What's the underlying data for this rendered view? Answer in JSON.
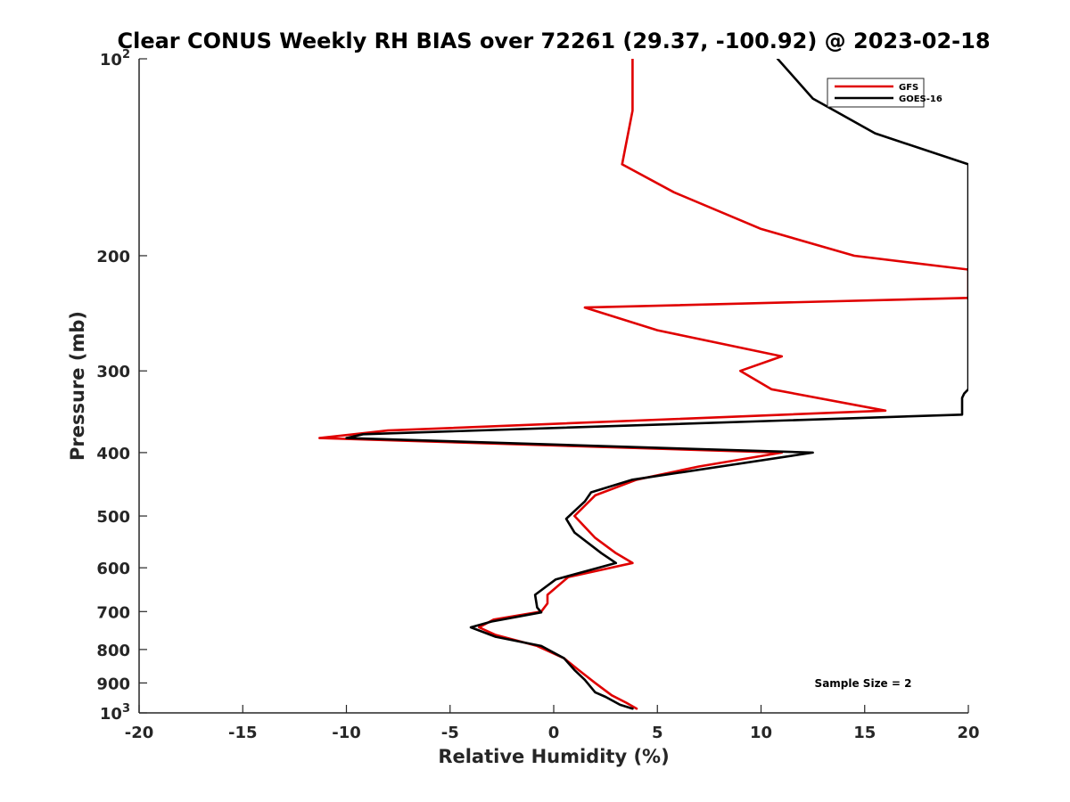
{
  "chart_data": {
    "type": "line",
    "title": "Clear CONUS Weekly RH BIAS over 72261 (29.37, -100.92) @ 2023-02-18",
    "xlabel": "Relative Humidity (%)",
    "ylabel": "Pressure (mb)",
    "xlim": [
      -20,
      20
    ],
    "ylim": [
      100,
      1000
    ],
    "y_scale": "log",
    "y_reversed": true,
    "x_ticks": [
      "-20",
      "-15",
      "-10",
      "-5",
      "0",
      "5",
      "10",
      "15",
      "20"
    ],
    "y_ticks": [
      {
        "value": 200,
        "label": "200"
      },
      {
        "value": 300,
        "label": "300"
      },
      {
        "value": 400,
        "label": "400"
      },
      {
        "value": 500,
        "label": "500"
      },
      {
        "value": 600,
        "label": "600"
      },
      {
        "value": 700,
        "label": "700"
      },
      {
        "value": 800,
        "label": "800"
      },
      {
        "value": 900,
        "label": "900"
      }
    ],
    "y_end_labels": {
      "top": {
        "base": "10",
        "exp": "2"
      },
      "bottom": {
        "base": "10",
        "exp": "3"
      }
    },
    "grid": false,
    "legend_position": "top-right",
    "annotation": "Sample Size = 2",
    "series": [
      {
        "name": "GFS",
        "color": "#e00000",
        "points": [
          [
            4.0,
            985
          ],
          [
            3.5,
            965
          ],
          [
            2.8,
            940
          ],
          [
            2.0,
            900
          ],
          [
            1.2,
            860
          ],
          [
            0.5,
            825
          ],
          [
            -0.8,
            790
          ],
          [
            -2.8,
            760
          ],
          [
            -3.6,
            740
          ],
          [
            -2.9,
            720
          ],
          [
            -0.6,
            700
          ],
          [
            -0.3,
            680
          ],
          [
            -0.3,
            660
          ],
          [
            0.7,
            620
          ],
          [
            3.8,
            590
          ],
          [
            3.0,
            570
          ],
          [
            2.0,
            540
          ],
          [
            1.0,
            500
          ],
          [
            2.0,
            465
          ],
          [
            4.0,
            440
          ],
          [
            7.0,
            420
          ],
          [
            11.0,
            400
          ],
          [
            -11.3,
            380
          ],
          [
            -8.0,
            370
          ],
          [
            16.0,
            345
          ],
          [
            10.5,
            320
          ],
          [
            9.0,
            300
          ],
          [
            11.0,
            285
          ],
          [
            5.0,
            260
          ],
          [
            1.5,
            240
          ],
          [
            20.0,
            232
          ],
          [
            20.0,
            210
          ],
          [
            14.5,
            200
          ],
          [
            10.0,
            182
          ],
          [
            5.8,
            160
          ],
          [
            3.3,
            145
          ],
          [
            3.8,
            120
          ],
          [
            3.8,
            100
          ]
        ]
      },
      {
        "name": "GOES-16",
        "color": "#000000",
        "points": [
          [
            3.8,
            985
          ],
          [
            3.2,
            972
          ],
          [
            2.5,
            945
          ],
          [
            2.0,
            930
          ],
          [
            1.5,
            890
          ],
          [
            1.0,
            860
          ],
          [
            0.5,
            825
          ],
          [
            -0.6,
            790
          ],
          [
            -2.8,
            765
          ],
          [
            -4.0,
            740
          ],
          [
            -3.0,
            725
          ],
          [
            -0.6,
            702
          ],
          [
            -0.8,
            690
          ],
          [
            -0.9,
            660
          ],
          [
            0.1,
            625
          ],
          [
            3.0,
            590
          ],
          [
            2.3,
            570
          ],
          [
            1.0,
            530
          ],
          [
            0.6,
            505
          ],
          [
            1.5,
            475
          ],
          [
            1.8,
            460
          ],
          [
            3.8,
            440
          ],
          [
            12.5,
            400
          ],
          [
            -10.0,
            380
          ],
          [
            -9.2,
            375
          ],
          [
            19.7,
            350
          ],
          [
            19.7,
            330
          ],
          [
            19.8,
            325
          ],
          [
            20.0,
            320
          ],
          [
            20.0,
            145
          ],
          [
            15.5,
            130
          ],
          [
            12.5,
            115
          ],
          [
            10.8,
            100
          ]
        ]
      }
    ]
  }
}
